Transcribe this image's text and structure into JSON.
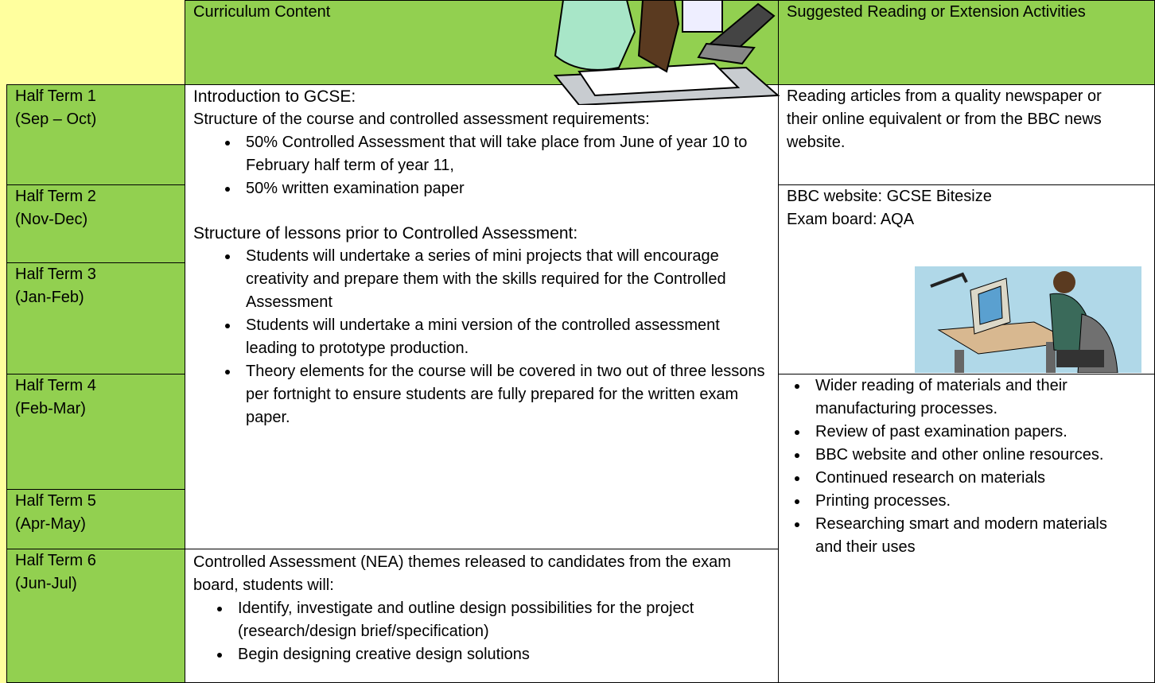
{
  "header": {
    "curriculum": "Curriculum Content",
    "reading": "Suggested Reading or Extension Activities"
  },
  "terms": [
    {
      "name": "Half Term 1",
      "dates": "(Sep – Oct)"
    },
    {
      "name": "Half Term 2",
      "dates": "(Nov-Dec)"
    },
    {
      "name": "Half Term 3",
      "dates": "(Jan-Feb)"
    },
    {
      "name": "Half Term 4",
      "dates": "(Feb-Mar)"
    },
    {
      "name": "Half Term 5",
      "dates": "(Apr-May)"
    },
    {
      "name": "Half Term 6",
      "dates": "(Jun-Jul)"
    }
  ],
  "content_1": {
    "heading": "Introduction to GCSE:",
    "intro": "Structure of the course and controlled assessment requirements:",
    "bullets": [
      "50% Controlled Assessment that will take place from June of year 10 to February half term of year 11,",
      "50% written examination paper"
    ],
    "heading_2": "Structure of lessons prior to Controlled Assessment:",
    "bullets_2": [
      "Students will undertake a series of mini projects that will encourage creativity and prepare them with the skills required for the Controlled Assessment",
      "Students will undertake a mini version of the controlled assessment leading to prototype production.",
      "Theory elements for the course will be covered in two out of three lessons per fortnight to ensure students are fully prepared for the written exam paper."
    ]
  },
  "content_2": {
    "intro": "Controlled Assessment (NEA) themes released to candidates from the exam board, students will:",
    "bullets": [
      "Identify, investigate and outline design possibilities for the project (research/design brief/specification)",
      "Begin designing creative design solutions"
    ]
  },
  "reading_1": "Reading articles from a quality newspaper or their online equivalent or from the BBC news website.",
  "reading_2": [
    "BBC website: GCSE Bitesize",
    "Exam board: AQA"
  ],
  "reading_3": [
    "Wider reading of materials and their manufacturing processes.",
    "Review of past examination papers.",
    "BBC website and other online resources.",
    "Continued research on materials",
    "Printing processes.",
    "Researching smart and modern materials and their uses"
  ]
}
